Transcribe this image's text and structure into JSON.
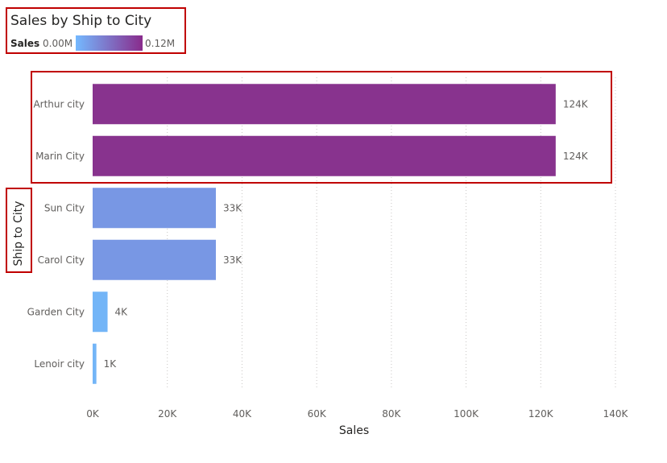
{
  "chart_data": {
    "type": "bar",
    "orientation": "horizontal",
    "title": "Sales by Ship to City",
    "xlabel": "Sales",
    "ylabel": "Ship to City",
    "xlim": [
      0,
      140000
    ],
    "x_ticks": [
      {
        "value": 0,
        "label": "0K"
      },
      {
        "value": 20000,
        "label": "20K"
      },
      {
        "value": 40000,
        "label": "40K"
      },
      {
        "value": 60000,
        "label": "60K"
      },
      {
        "value": 80000,
        "label": "80K"
      },
      {
        "value": 100000,
        "label": "100K"
      },
      {
        "value": 120000,
        "label": "120K"
      },
      {
        "value": 140000,
        "label": "140K"
      }
    ],
    "grid": "vertical",
    "legend": {
      "name": "Sales",
      "min_label": "0.00M",
      "max_label": "0.12M",
      "min_value": 0,
      "max_value": 120000,
      "gradient_colors": [
        "#74b9ff",
        "#892b8c"
      ],
      "placement": "top-left"
    },
    "categories": [
      "Arthur city",
      "Marin City",
      "Sun City",
      "Carol City",
      "Garden City",
      "Lenoir city"
    ],
    "values": [
      124000,
      124000,
      33000,
      33000,
      4000,
      1000
    ],
    "data_labels": [
      "124K",
      "124K",
      "33K",
      "33K",
      "4K",
      "1K"
    ],
    "bar_colors": [
      "#88338e",
      "#88338e",
      "#7897e4",
      "#7897e4",
      "#73b5f7",
      "#73b5f7"
    ]
  }
}
